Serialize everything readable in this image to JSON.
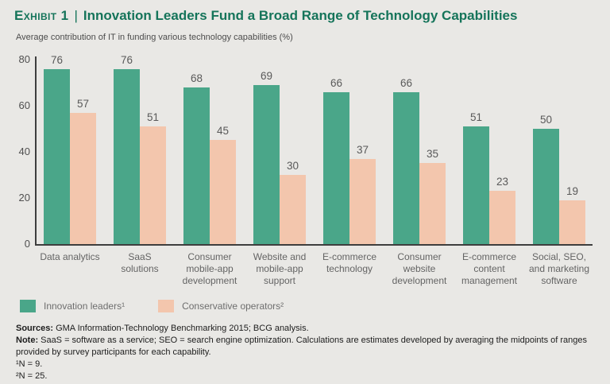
{
  "header": {
    "exhibit_label": "Exhibit 1",
    "separator": "|",
    "title": "Innovation Leaders Fund a Broad Range of Technology Capabilities",
    "subtitle": "Average contribution of IT in funding various technology capabilities (%)"
  },
  "chart_data": {
    "type": "bar",
    "title": "Innovation Leaders Fund a Broad Range of Technology Capabilities",
    "subtitle": "Average contribution of IT in funding various technology capabilities (%)",
    "categories": [
      "Data analytics",
      "SaaS solutions",
      "Consumer mobile-app development",
      "Website and mobile-app support",
      "E-commerce technology",
      "Consumer website development",
      "E-commerce content management",
      "Social, SEO, and marketing software"
    ],
    "series": [
      {
        "name": "Innovation leaders¹",
        "color": "#4aa689",
        "values": [
          76,
          76,
          68,
          69,
          66,
          66,
          51,
          50
        ]
      },
      {
        "name": "Conservative operators²",
        "color": "#f3c6ad",
        "values": [
          57,
          51,
          45,
          30,
          37,
          35,
          23,
          19
        ]
      }
    ],
    "ylim": [
      0,
      80
    ],
    "yticks": [
      0,
      20,
      40,
      60,
      80
    ],
    "grid": false,
    "value_labels": true,
    "legend_position": "bottom-left"
  },
  "colors": {
    "background": "#e9e8e5",
    "title_green": "#15745a",
    "innovation_green": "#4aa689",
    "conservative_peach": "#f3c6ad",
    "axis": "#3e3e3e"
  },
  "footer": {
    "sources_label": "Sources:",
    "sources_text": "GMA Information-Technology Benchmarking 2015; BCG analysis.",
    "note_label": "Note:",
    "note_text": "SaaS = software as a service; SEO = search engine optimization. Calculations are estimates developed by averaging the midpoints of ranges provided by survey participants for each capability.",
    "footnote_1": "¹N = 9.",
    "footnote_2": "²N = 25."
  }
}
